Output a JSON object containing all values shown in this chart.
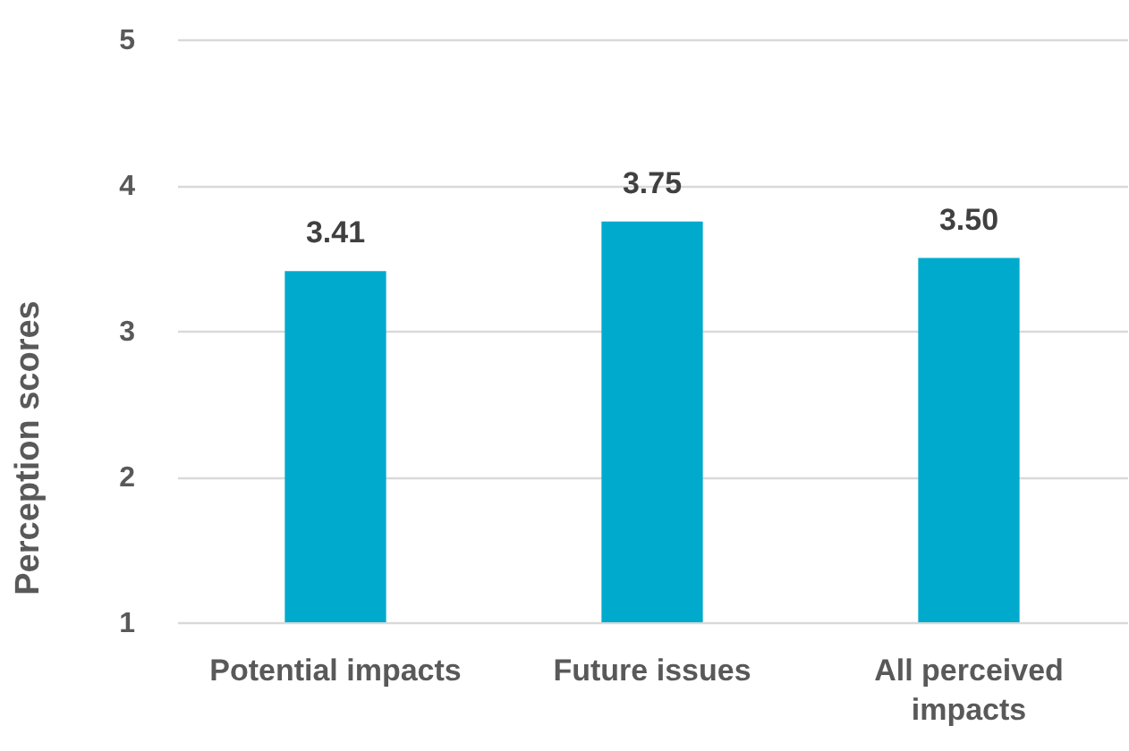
{
  "chart_data": {
    "type": "bar",
    "ylabel": "Perception scores",
    "categories": [
      "Potential impacts",
      "Future issues",
      "All perceived impacts"
    ],
    "values": [
      3.41,
      3.75,
      3.5
    ],
    "value_labels": [
      "3.41",
      "3.75",
      "3.50"
    ],
    "color": "#00aacd",
    "ylim": [
      1,
      5
    ],
    "yticks": [
      1,
      2,
      3,
      4,
      5
    ],
    "grid": "y"
  }
}
